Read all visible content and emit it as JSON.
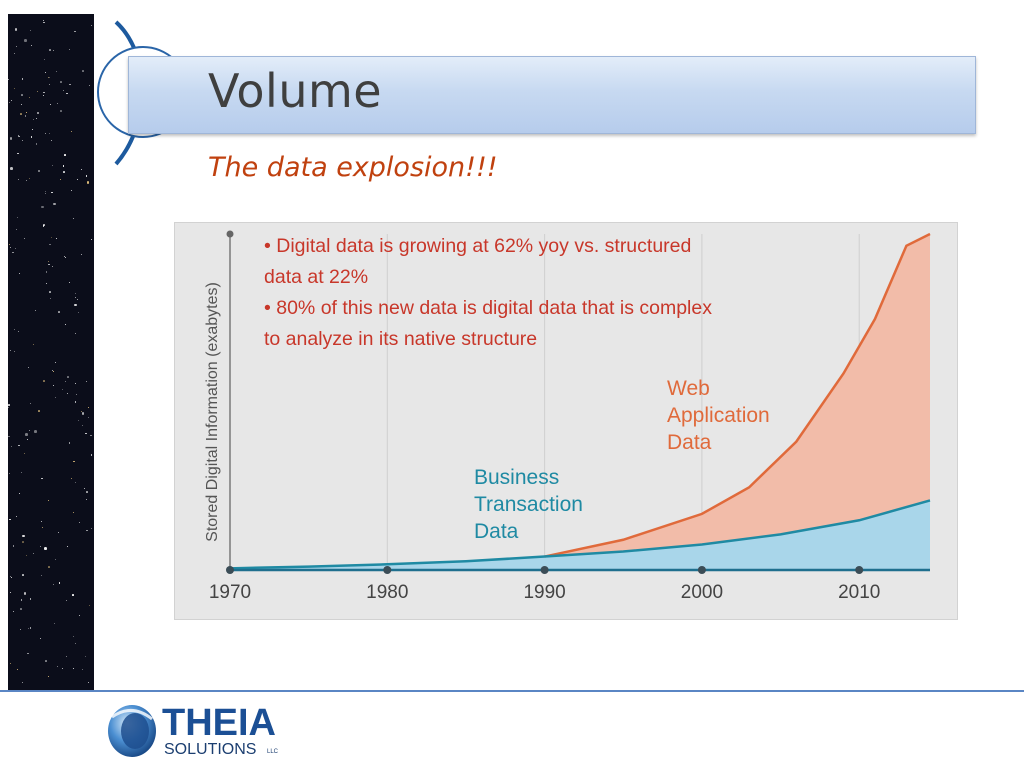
{
  "slide": {
    "title": "Volume",
    "subtitle": "The data explosion!!!"
  },
  "chart_data": {
    "type": "area",
    "ylabel": "Stored Digital Information (exabytes)",
    "xlabel": "",
    "x_ticks": [
      "1970",
      "1980",
      "1990",
      "2000",
      "2010"
    ],
    "xlim": [
      1970,
      2014.5
    ],
    "ylim": [
      0,
      100
    ],
    "bullets": [
      "• Digital data is growing at 62% yoy vs. structured",
      "data at 22%",
      "• 80% of this new data is digital data that is complex",
      "to analyze in its native structure"
    ],
    "series": [
      {
        "name": "Business Transaction Data",
        "label_lines": [
          "Business",
          "Transaction",
          "Data"
        ],
        "color": "#1f8aa3",
        "fill": "#a9d6ea",
        "x": [
          1970,
          1975,
          1980,
          1985,
          1990,
          1995,
          2000,
          2005,
          2010,
          2014.5
        ],
        "y": [
          0.5,
          1.0,
          1.7,
          2.6,
          4.0,
          5.5,
          7.6,
          10.6,
          14.8,
          20.7
        ]
      },
      {
        "name": "Web Application Data",
        "label_lines": [
          "Web",
          "Application",
          "Data"
        ],
        "color": "#e06a3b",
        "fill": "#f2bca9",
        "x": [
          1990,
          1995,
          2000,
          2003,
          2006,
          2009,
          2011,
          2013,
          2014.5
        ],
        "y": [
          4.0,
          9.0,
          16.7,
          24.6,
          38.2,
          58.5,
          74.7,
          96.5,
          100
        ]
      }
    ],
    "colors": {
      "axis": "#1f6f8e",
      "tick": "#5a5a5a",
      "bullet_text": "#c8372a",
      "grid": "#cfcfcf"
    }
  },
  "logo": {
    "name": "THEIA",
    "sub": "SOLUTIONS",
    "suffix": "LLC"
  }
}
